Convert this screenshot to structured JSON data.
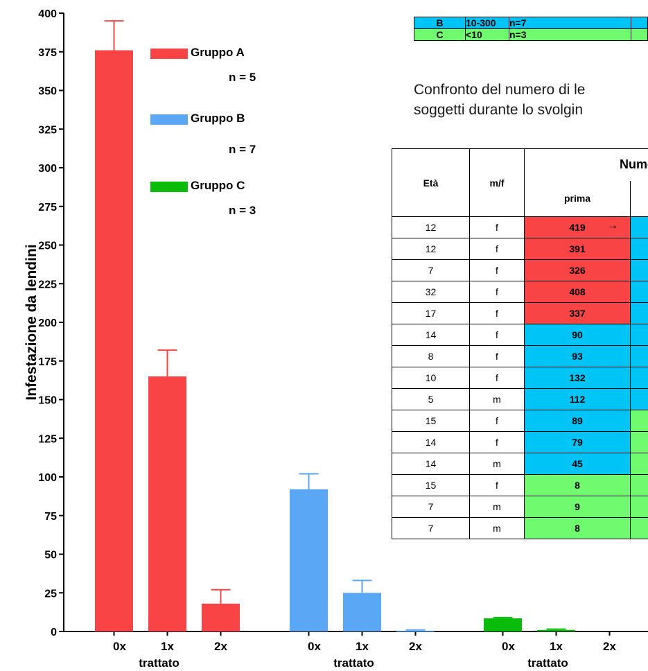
{
  "colors": {
    "group_a": "#f84444",
    "group_b": "#5aa7f5",
    "group_c": "#0abb0a",
    "table_red": "#f84444",
    "table_blue": "#00c4f6",
    "table_green": "#6ffa6f"
  },
  "chart_data": {
    "type": "bar",
    "ylabel": "Infestazione da lendini",
    "ylim": [
      0,
      400
    ],
    "yticks": [
      "0",
      "25",
      "50",
      "75",
      "100",
      "125",
      "150",
      "175",
      "200",
      "225",
      "250",
      "275",
      "300",
      "325",
      "350",
      "375",
      "400"
    ],
    "groups": [
      {
        "name": "Gruppo A",
        "n_label": "n = 5",
        "group_xlabel": "trattato",
        "categories": [
          "0x",
          "1x",
          "2x"
        ],
        "values": [
          376,
          165,
          18
        ],
        "errors": [
          19,
          17,
          9
        ]
      },
      {
        "name": "Gruppo B",
        "n_label": "n = 7",
        "group_xlabel": "trattato",
        "categories": [
          "0x",
          "1x",
          "2x"
        ],
        "values": [
          92,
          25,
          0.5
        ],
        "errors": [
          10,
          8,
          0.5
        ]
      },
      {
        "name": "Gruppo C",
        "n_label": "n = 3",
        "group_xlabel": "trattato",
        "categories": [
          "0x",
          "1x",
          "2x"
        ],
        "values": [
          8.5,
          1,
          0
        ],
        "errors": [
          0.5,
          0.5,
          0
        ]
      }
    ],
    "grid": false,
    "legend_placement": "top-left"
  },
  "group_table": {
    "rows": [
      {
        "group": "B",
        "range": "10-300",
        "n": "n=7"
      },
      {
        "group": "C",
        "range": "<10",
        "n": "n=3"
      }
    ]
  },
  "caption": {
    "line1": "Confronto del numero di le",
    "line2": "soggetti durante lo svolgin"
  },
  "data_table": {
    "header_age": "Età",
    "header_sex": "m/f",
    "header_number": "Nume",
    "header_before": "prima",
    "arrow": "→",
    "rows": [
      {
        "age": "12",
        "sex": "f",
        "before": "419",
        "color": "red",
        "next": "blue"
      },
      {
        "age": "12",
        "sex": "f",
        "before": "391",
        "color": "red",
        "next": "blue"
      },
      {
        "age": "7",
        "sex": "f",
        "before": "326",
        "color": "red",
        "next": "blue"
      },
      {
        "age": "32",
        "sex": "f",
        "before": "408",
        "color": "red",
        "next": "blue"
      },
      {
        "age": "17",
        "sex": "f",
        "before": "337",
        "color": "red",
        "next": "blue"
      },
      {
        "age": "14",
        "sex": "f",
        "before": "90",
        "color": "blue",
        "next": "blue"
      },
      {
        "age": "8",
        "sex": "f",
        "before": "93",
        "color": "blue",
        "next": "blue"
      },
      {
        "age": "10",
        "sex": "f",
        "before": "132",
        "color": "blue",
        "next": "blue"
      },
      {
        "age": "5",
        "sex": "m",
        "before": "112",
        "color": "blue",
        "next": "blue"
      },
      {
        "age": "15",
        "sex": "f",
        "before": "89",
        "color": "blue",
        "next": "green"
      },
      {
        "age": "14",
        "sex": "f",
        "before": "79",
        "color": "blue",
        "next": "green"
      },
      {
        "age": "14",
        "sex": "m",
        "before": "45",
        "color": "blue",
        "next": "green"
      },
      {
        "age": "15",
        "sex": "f",
        "before": "8",
        "color": "green",
        "next": "green"
      },
      {
        "age": "7",
        "sex": "m",
        "before": "9",
        "color": "green",
        "next": "green"
      },
      {
        "age": "7",
        "sex": "m",
        "before": "8",
        "color": "green",
        "next": "green"
      }
    ]
  }
}
